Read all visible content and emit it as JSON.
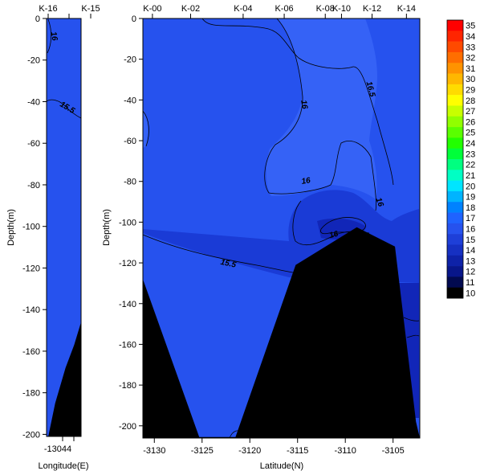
{
  "colors": {
    "contour_fill": "#2652EE",
    "contour_fill_light": "#3562F6",
    "contour_fill_dark": "#1A3BD6",
    "contour_fill_darker": "#1126B8",
    "bathymetry": "#000000"
  },
  "chart_data": [
    {
      "type": "contour",
      "station_labels": [
        "K-16",
        "K-15"
      ],
      "xlabel": "Longitude(E)",
      "ylabel": "Depth(m)",
      "x_tick_labels": [
        "-13044"
      ],
      "y_ticks": [
        0,
        -20,
        -40,
        -60,
        -80,
        -100,
        -120,
        -140,
        -160,
        -180,
        -200
      ],
      "ylim": [
        -201,
        0
      ],
      "contour_labels": [
        "16",
        "15.5"
      ],
      "seafloor": [
        [
          0.05,
          -201
        ],
        [
          0.25,
          -185
        ],
        [
          0.55,
          -168
        ],
        [
          0.8,
          -157
        ],
        [
          1.0,
          -146
        ]
      ]
    },
    {
      "type": "contour",
      "station_labels": [
        "K-00",
        "K-02",
        "K-04",
        "K-06",
        "K-08",
        "K-10",
        "K-12",
        "K-14"
      ],
      "station_x": [
        -3130.2,
        -3126.2,
        -3120.7,
        -3116.4,
        -3112.1,
        -3110.4,
        -3107.2,
        -3103.6
      ],
      "xlabel": "Latitude(N)",
      "ylabel": "Depth(m)",
      "x_ticks": [
        -3130,
        -3125,
        -3120,
        -3115,
        -3110,
        -3105
      ],
      "xlim": [
        -3131.2,
        -3102.2
      ],
      "y_ticks": [
        0,
        -20,
        -40,
        -60,
        -80,
        -100,
        -120,
        -140,
        -160,
        -180,
        -200
      ],
      "ylim": [
        -206,
        0
      ],
      "contour_labels": [
        "16.5",
        "16",
        "16",
        "16",
        "16",
        "15.5"
      ],
      "seafloor": [
        [
          -3131.2,
          -128
        ],
        [
          -3125.3,
          -205.5
        ],
        [
          -3121.5,
          -205.5
        ],
        [
          -3115.2,
          -121
        ],
        [
          -3108.8,
          -102.5
        ],
        [
          -3104.8,
          -112
        ],
        [
          -3102.6,
          -198
        ],
        [
          -3102.2,
          -206
        ]
      ]
    }
  ],
  "colorbar": {
    "labels": [
      "35",
      "34",
      "33",
      "32",
      "31",
      "30",
      "29",
      "28",
      "27",
      "26",
      "25",
      "24",
      "23",
      "22",
      "21",
      "20",
      "19",
      "18",
      "17",
      "16",
      "15",
      "14",
      "13",
      "12",
      "11",
      "10"
    ],
    "colors": [
      "#FF0000",
      "#FF2500",
      "#FF4A00",
      "#FF6E00",
      "#FF9300",
      "#FFB700",
      "#FFDB00",
      "#FFFF00",
      "#C8FF00",
      "#91FF00",
      "#5AFF00",
      "#22FF00",
      "#00FF3A",
      "#00FF80",
      "#00FFC4",
      "#00E5FF",
      "#00B4FF",
      "#0082FF",
      "#1F63FF",
      "#2652EE",
      "#1E3FD8",
      "#1630C2",
      "#0E22A8",
      "#08168A",
      "#020A50",
      "#000000"
    ]
  }
}
